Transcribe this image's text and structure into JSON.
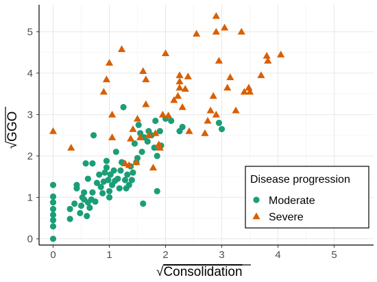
{
  "chart_data": {
    "type": "scatter",
    "title": "",
    "xlabel": "Consolidation",
    "ylabel": "GGO",
    "axis_label_radical": "√",
    "xlim": [
      -0.25,
      5.7
    ],
    "ylim": [
      -0.15,
      5.65
    ],
    "xticks": [
      0,
      1,
      2,
      3,
      4,
      5
    ],
    "yticks": [
      0,
      1,
      2,
      3,
      4,
      5
    ],
    "grid": true,
    "legend": {
      "title": "Disease progression",
      "placement": "bottom-right"
    },
    "series": [
      {
        "name": "Moderate",
        "marker": "circle",
        "color": "#1b9e77",
        "points": [
          [
            0,
            0
          ],
          [
            0,
            0.3
          ],
          [
            0,
            0.45
          ],
          [
            0,
            0.58
          ],
          [
            0,
            0.72
          ],
          [
            0,
            0.88
          ],
          [
            0,
            1.02
          ],
          [
            0,
            1.3
          ],
          [
            0.3,
            0.48
          ],
          [
            0.3,
            0.72
          ],
          [
            0.38,
            0.85
          ],
          [
            0.42,
            1.22
          ],
          [
            0.42,
            1.3
          ],
          [
            0.48,
            0.62
          ],
          [
            0.5,
            0.8
          ],
          [
            0.52,
            1.0
          ],
          [
            0.55,
            0.95
          ],
          [
            0.55,
            1.12
          ],
          [
            0.58,
            1.82
          ],
          [
            0.6,
            0.55
          ],
          [
            0.62,
            0.88
          ],
          [
            0.62,
            1.45
          ],
          [
            0.65,
            0.75
          ],
          [
            0.68,
            0.95
          ],
          [
            0.7,
            1.12
          ],
          [
            0.7,
            1.82
          ],
          [
            0.72,
            2.5
          ],
          [
            0.75,
            0.9
          ],
          [
            0.78,
            1.35
          ],
          [
            0.82,
            1.55
          ],
          [
            0.85,
            1.25
          ],
          [
            0.88,
            1.1
          ],
          [
            0.9,
            1.38
          ],
          [
            0.92,
            1.6
          ],
          [
            0.95,
            1.72
          ],
          [
            0.95,
            1.88
          ],
          [
            0.98,
            1.42
          ],
          [
            1.0,
            1.0
          ],
          [
            1.0,
            1.15
          ],
          [
            1.02,
            1.55
          ],
          [
            1.05,
            1.3
          ],
          [
            1.08,
            1.65
          ],
          [
            1.1,
            1.4
          ],
          [
            1.12,
            2.1
          ],
          [
            1.15,
            1.45
          ],
          [
            1.18,
            1.22
          ],
          [
            1.2,
            1.65
          ],
          [
            1.22,
            1.85
          ],
          [
            1.25,
            3.18
          ],
          [
            1.28,
            1.42
          ],
          [
            1.3,
            1.22
          ],
          [
            1.32,
            1.55
          ],
          [
            1.35,
            1.3
          ],
          [
            1.38,
            1.75
          ],
          [
            1.4,
            1.42
          ],
          [
            1.42,
            1.6
          ],
          [
            1.45,
            2.3
          ],
          [
            1.48,
            1.85
          ],
          [
            1.5,
            1.95
          ],
          [
            1.52,
            2.75
          ],
          [
            1.55,
            2.55
          ],
          [
            1.58,
            2.1
          ],
          [
            1.6,
            0.85
          ],
          [
            1.62,
            2.45
          ],
          [
            1.68,
            2.35
          ],
          [
            1.7,
            2.6
          ],
          [
            1.75,
            2.5
          ],
          [
            1.8,
            2.2
          ],
          [
            1.82,
            2.85
          ],
          [
            1.85,
            2.0
          ],
          [
            1.85,
            1.15
          ],
          [
            1.9,
            2.6
          ],
          [
            1.92,
            2.25
          ],
          [
            2.0,
            2.9
          ],
          [
            2.1,
            2.85
          ],
          [
            2.25,
            2.6
          ],
          [
            2.3,
            2.7
          ],
          [
            2.95,
            2.8
          ],
          [
            3.0,
            2.65
          ]
        ]
      },
      {
        "name": "Severe",
        "marker": "triangle",
        "color": "#d95f02",
        "points": [
          [
            0,
            2.6
          ],
          [
            0.32,
            2.2
          ],
          [
            0.9,
            3.55
          ],
          [
            0.95,
            3.85
          ],
          [
            1.0,
            4.25
          ],
          [
            1.05,
            2.45
          ],
          [
            1.05,
            3.0
          ],
          [
            1.22,
            4.58
          ],
          [
            1.28,
            1.82
          ],
          [
            1.35,
            1.78
          ],
          [
            1.38,
            2.42
          ],
          [
            1.42,
            2.65
          ],
          [
            1.48,
            1.85
          ],
          [
            1.5,
            2.9
          ],
          [
            1.55,
            2.45
          ],
          [
            1.6,
            4.05
          ],
          [
            1.65,
            3.85
          ],
          [
            1.65,
            3.25
          ],
          [
            1.7,
            2.5
          ],
          [
            1.78,
            1.72
          ],
          [
            1.82,
            2.55
          ],
          [
            1.88,
            2.28
          ],
          [
            1.95,
            3.0
          ],
          [
            2.0,
            4.48
          ],
          [
            2.05,
            2.98
          ],
          [
            2.15,
            3.35
          ],
          [
            2.22,
            3.45
          ],
          [
            2.25,
            3.8
          ],
          [
            2.25,
            3.65
          ],
          [
            2.25,
            3.95
          ],
          [
            2.3,
            3.18
          ],
          [
            2.35,
            3.62
          ],
          [
            2.4,
            3.92
          ],
          [
            2.42,
            2.6
          ],
          [
            2.7,
            2.55
          ],
          [
            2.75,
            2.85
          ],
          [
            2.8,
            3.1
          ],
          [
            2.85,
            3.45
          ],
          [
            2.9,
            3.0
          ],
          [
            2.9,
            5.38
          ],
          [
            2.9,
            5.0
          ],
          [
            2.95,
            4.3
          ],
          [
            3.05,
            5.1
          ],
          [
            3.1,
            3.65
          ],
          [
            3.15,
            3.9
          ],
          [
            3.25,
            3.1
          ],
          [
            3.35,
            5.0
          ],
          [
            3.4,
            3.55
          ],
          [
            3.48,
            3.65
          ],
          [
            3.5,
            3.55
          ],
          [
            3.7,
            3.95
          ],
          [
            3.8,
            4.42
          ],
          [
            3.82,
            4.3
          ],
          [
            4.05,
            4.45
          ],
          [
            2.55,
            4.95
          ],
          [
            1.9,
            2.2
          ]
        ]
      }
    ]
  }
}
